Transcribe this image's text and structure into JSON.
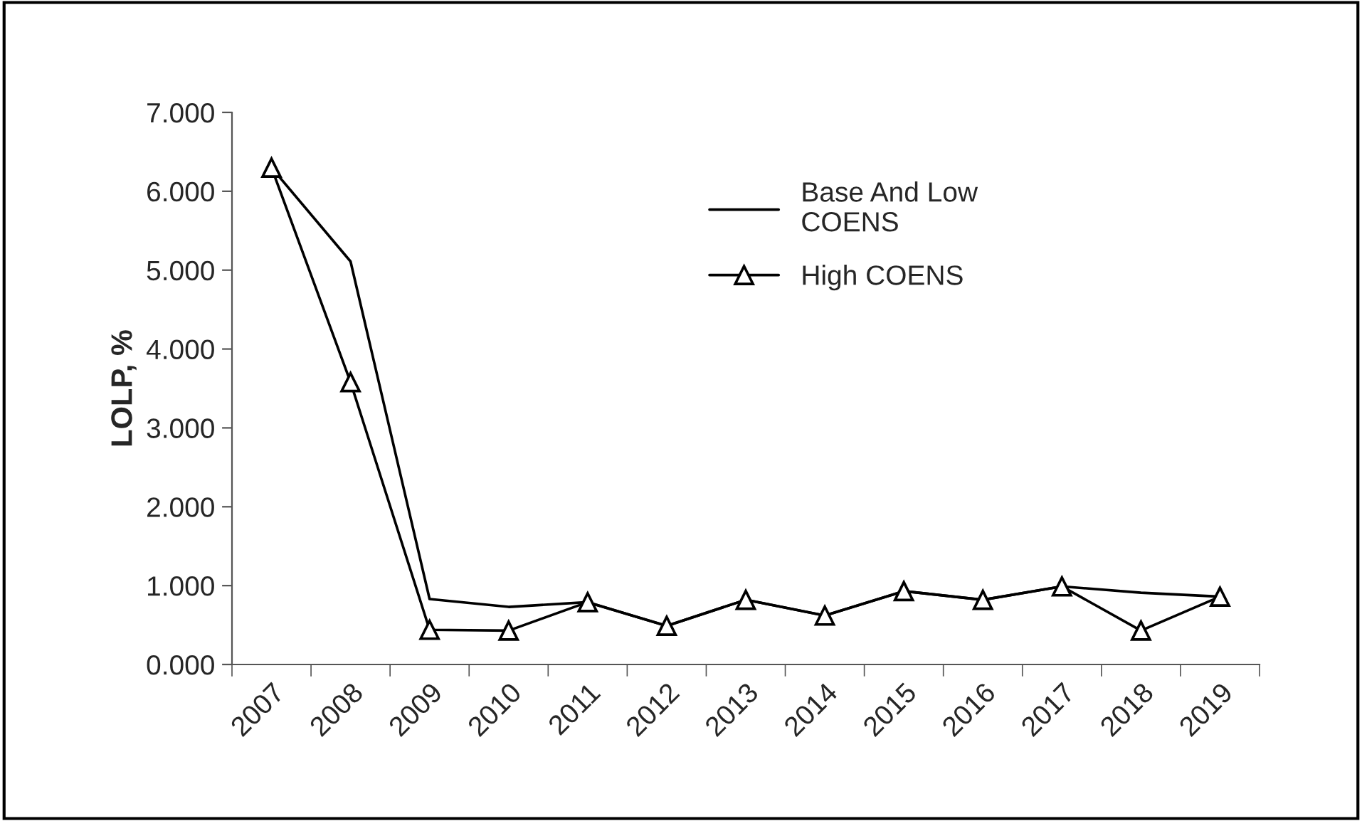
{
  "chart_data": {
    "type": "line",
    "ylabel": "LOLP, %",
    "categories": [
      "2007",
      "2008",
      "2009",
      "2010",
      "2011",
      "2012",
      "2013",
      "2014",
      "2015",
      "2016",
      "2017",
      "2018",
      "2019"
    ],
    "series": [
      {
        "name": "Base And Low\nCOENS",
        "color": "#000000",
        "marker": "none",
        "values": [
          6.3,
          5.11,
          0.83,
          0.73,
          0.79,
          0.49,
          0.82,
          0.62,
          0.93,
          0.82,
          0.99,
          0.91,
          0.86
        ]
      },
      {
        "name": "High COENS",
        "color": "#000000",
        "marker": "triangle",
        "values": [
          6.3,
          3.58,
          0.44,
          0.43,
          0.79,
          0.49,
          0.82,
          0.62,
          0.93,
          0.82,
          0.99,
          0.43,
          0.86
        ]
      }
    ],
    "ylim": [
      0,
      7
    ],
    "yticks": [
      {
        "value": 0,
        "label": "0.000"
      },
      {
        "value": 1,
        "label": "1.000"
      },
      {
        "value": 2,
        "label": "2.000"
      },
      {
        "value": 3,
        "label": "3.000"
      },
      {
        "value": 4,
        "label": "4.000"
      },
      {
        "value": 5,
        "label": "5.000"
      },
      {
        "value": 6,
        "label": "6.000"
      },
      {
        "value": 7,
        "label": "7.000"
      }
    ],
    "grid": false,
    "legend": "top right",
    "line_style": "solid"
  }
}
